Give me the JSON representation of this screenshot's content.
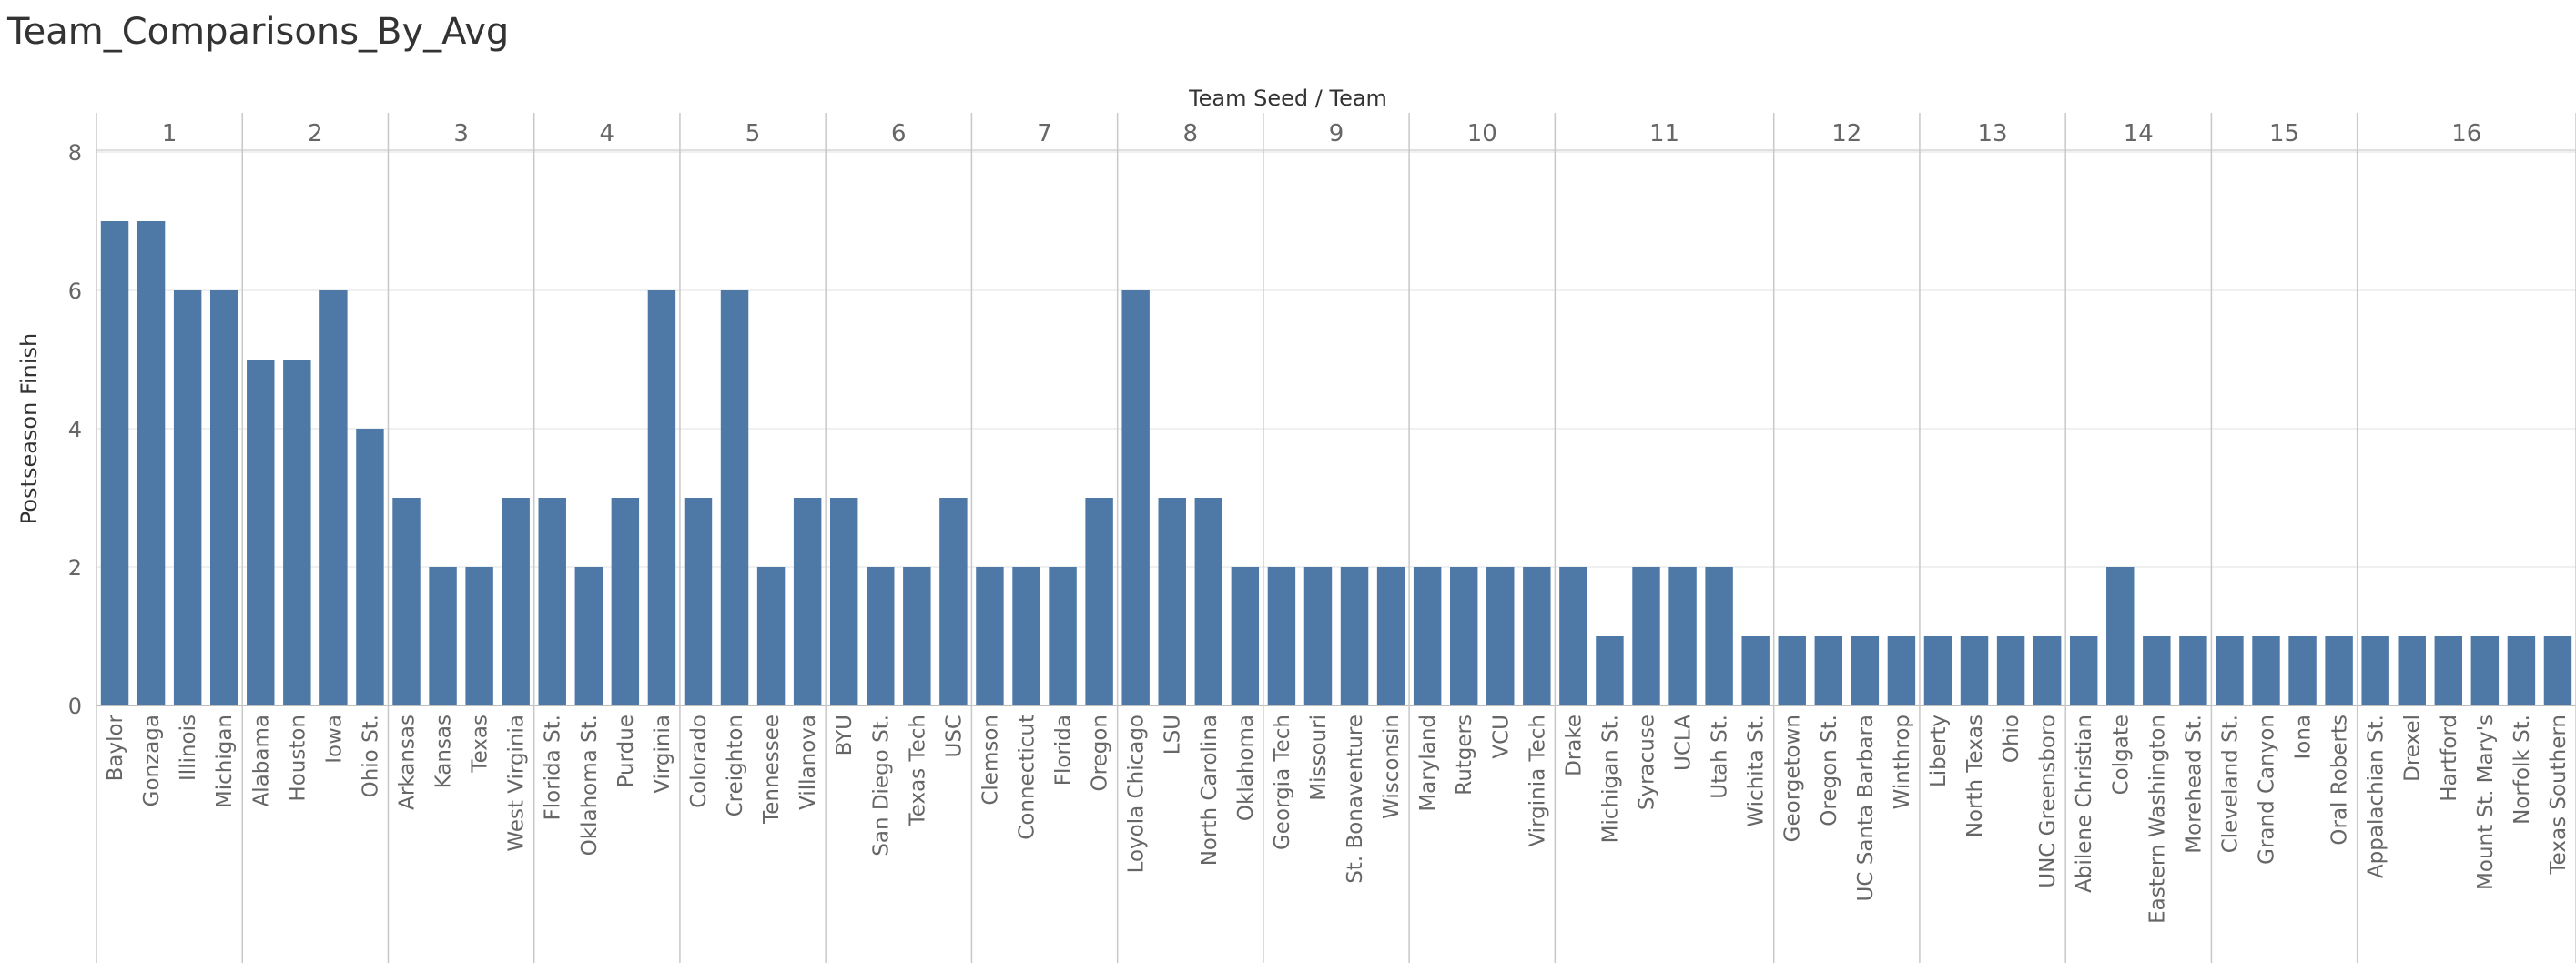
{
  "title": "Team_Comparisons_By_Avg",
  "chart_data": {
    "type": "bar",
    "column_header": "Team Seed  /  Team",
    "ylabel": "Postseason Finish",
    "ylim": [
      0,
      8
    ],
    "yticks": [
      0,
      2,
      4,
      6,
      8
    ],
    "bar_color": "#4e79a7",
    "groups": [
      {
        "seed": "1",
        "teams": [
          "Baylor",
          "Gonzaga",
          "Illinois",
          "Michigan"
        ],
        "values": [
          7,
          7,
          6,
          6
        ]
      },
      {
        "seed": "2",
        "teams": [
          "Alabama",
          "Houston",
          "Iowa",
          "Ohio St."
        ],
        "values": [
          5,
          5,
          6,
          4
        ]
      },
      {
        "seed": "3",
        "teams": [
          "Arkansas",
          "Kansas",
          "Texas",
          "West Virginia"
        ],
        "values": [
          3,
          2,
          2,
          3
        ]
      },
      {
        "seed": "4",
        "teams": [
          "Florida St.",
          "Oklahoma St.",
          "Purdue",
          "Virginia"
        ],
        "values": [
          3,
          2,
          3,
          6
        ]
      },
      {
        "seed": "5",
        "teams": [
          "Colorado",
          "Creighton",
          "Tennessee",
          "Villanova"
        ],
        "values": [
          3,
          6,
          2,
          3
        ]
      },
      {
        "seed": "6",
        "teams": [
          "BYU",
          "San Diego St.",
          "Texas Tech",
          "USC"
        ],
        "values": [
          3,
          2,
          2,
          3
        ]
      },
      {
        "seed": "7",
        "teams": [
          "Clemson",
          "Connecticut",
          "Florida",
          "Oregon"
        ],
        "values": [
          2,
          2,
          2,
          3
        ]
      },
      {
        "seed": "8",
        "teams": [
          "Loyola Chicago",
          "LSU",
          "North Carolina",
          "Oklahoma"
        ],
        "values": [
          6,
          3,
          3,
          2
        ]
      },
      {
        "seed": "9",
        "teams": [
          "Georgia Tech",
          "Missouri",
          "St. Bonaventure",
          "Wisconsin"
        ],
        "values": [
          2,
          2,
          2,
          2
        ]
      },
      {
        "seed": "10",
        "teams": [
          "Maryland",
          "Rutgers",
          "VCU",
          "Virginia Tech"
        ],
        "values": [
          2,
          2,
          2,
          2
        ]
      },
      {
        "seed": "11",
        "teams": [
          "Drake",
          "Michigan St.",
          "Syracuse",
          "UCLA",
          "Utah St.",
          "Wichita St."
        ],
        "values": [
          2,
          1,
          2,
          2,
          2,
          1
        ]
      },
      {
        "seed": "12",
        "teams": [
          "Georgetown",
          "Oregon St.",
          "UC Santa Barbara",
          "Winthrop"
        ],
        "values": [
          1,
          1,
          1,
          1
        ]
      },
      {
        "seed": "13",
        "teams": [
          "Liberty",
          "North Texas",
          "Ohio",
          "UNC Greensboro"
        ],
        "values": [
          1,
          1,
          1,
          1
        ]
      },
      {
        "seed": "14",
        "teams": [
          "Abilene Christian",
          "Colgate",
          "Eastern Washington",
          "Morehead St."
        ],
        "values": [
          1,
          2,
          1,
          1
        ]
      },
      {
        "seed": "15",
        "teams": [
          "Cleveland St.",
          "Grand Canyon",
          "Iona",
          "Oral Roberts"
        ],
        "values": [
          1,
          1,
          1,
          1
        ]
      },
      {
        "seed": "16",
        "teams": [
          "Appalachian St.",
          "Drexel",
          "Hartford",
          "Mount St. Mary's",
          "Norfolk St.",
          "Texas Southern"
        ],
        "values": [
          1,
          1,
          1,
          1,
          1,
          1
        ]
      }
    ]
  }
}
